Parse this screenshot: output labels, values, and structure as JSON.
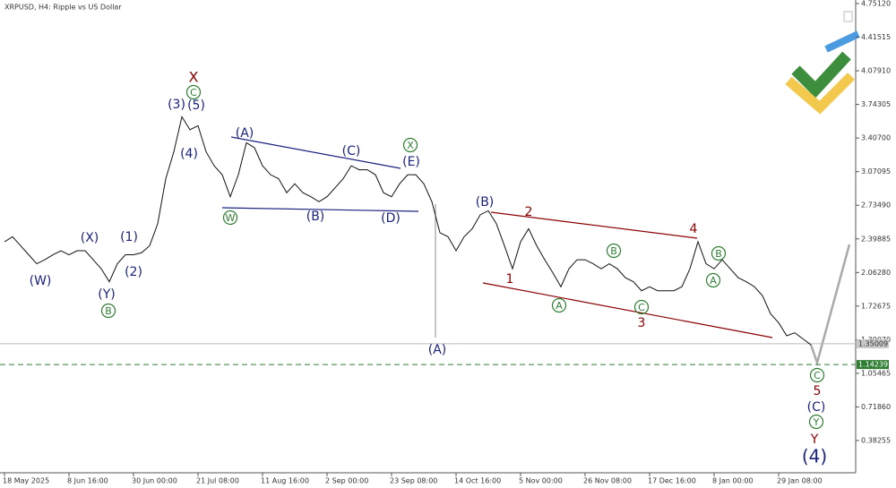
{
  "chart_data": {
    "type": "line",
    "title": "XRPUSD, H4: Ripple vs US Dollar",
    "categories": [
      "18 May 2025",
      null,
      null,
      null,
      null,
      null,
      null,
      null,
      "8 Jun 16:00",
      null,
      null,
      null,
      null,
      null,
      null,
      null,
      "30 Jun 00:00",
      null,
      null,
      null,
      null,
      null,
      null,
      null,
      "21 Jul 08:00",
      null,
      null,
      null,
      null,
      null,
      null,
      null,
      "11 Aug 16:00",
      null,
      null,
      null,
      null,
      null,
      null,
      null,
      "2 Sep 00:00",
      null,
      null,
      null,
      null,
      null,
      null,
      null,
      "23 Sep 08:00",
      null,
      null,
      null,
      null,
      null,
      null,
      null,
      "14 Oct 16:00",
      null,
      null,
      null,
      null,
      null,
      null,
      null,
      "5 Nov 00:00",
      null,
      null,
      null,
      null,
      null,
      null,
      null,
      "26 Nov 08:00",
      null,
      null,
      null,
      null,
      null,
      null,
      null,
      "17 Dec 16:00",
      null,
      null,
      null,
      null,
      null,
      null,
      null,
      "8 Jan 00:00",
      null,
      null,
      null,
      null,
      null,
      null,
      null,
      "29 Jan 08:00",
      null,
      null,
      null,
      null
    ],
    "series": [
      {
        "name": "XRPUSD",
        "color": "#111111",
        "values": [
          2.37,
          2.42,
          2.33,
          2.24,
          2.15,
          2.19,
          2.24,
          2.28,
          2.24,
          2.28,
          2.28,
          2.19,
          2.1,
          1.97,
          2.15,
          2.24,
          2.24,
          2.26,
          2.33,
          2.55,
          3.0,
          3.27,
          3.62,
          3.49,
          3.53,
          3.27,
          3.13,
          3.04,
          2.82,
          3.04,
          3.36,
          3.31,
          3.13,
          3.04,
          3.0,
          2.86,
          2.95,
          2.86,
          2.82,
          2.77,
          2.82,
          2.91,
          3.0,
          3.13,
          3.09,
          3.09,
          3.04,
          2.86,
          2.82,
          2.95,
          3.04,
          3.04,
          2.95,
          2.77,
          2.46,
          2.42,
          2.28,
          2.42,
          2.5,
          2.64,
          2.68,
          2.55,
          2.33,
          2.1,
          2.37,
          2.5,
          2.33,
          2.19,
          2.06,
          1.92,
          2.1,
          2.19,
          2.19,
          2.15,
          2.1,
          2.15,
          2.1,
          2.01,
          1.97,
          1.88,
          1.92,
          1.88,
          1.88,
          1.88,
          1.92,
          2.1,
          2.37,
          2.15,
          2.1,
          2.19,
          2.1,
          2.01,
          1.97,
          1.92,
          1.83,
          1.65,
          1.56,
          1.43,
          1.46,
          1.4,
          1.34
        ]
      }
    ],
    "ylim": [
      0.24,
      4.79
    ],
    "yticks": [
      {
        "value": 4.7512,
        "label": "4.75120"
      },
      4.41515,
      {
        "value": 4.0791,
        "label": "4.07910"
      },
      {
        "value": 3.74305,
        "label": "3.74305"
      },
      {
        "value": 3.407,
        "label": "3.40700"
      },
      3.07095,
      {
        "value": 2.7349,
        "label": "2.73490"
      },
      2.39885,
      {
        "value": 2.0628,
        "label": "2.06280"
      },
      1.72675,
      {
        "value": 1.3907,
        "label": "1.39070"
      },
      1.05465,
      {
        "value": 0.7186,
        "label": "0.71860"
      },
      0.38255
    ],
    "price_line": 1.35009,
    "target_line": 1.14239,
    "annotations": [
      {
        "text": "X",
        "color": "#8b0000"
      },
      {
        "text": "C",
        "color": "#2e7d32",
        "circled": true
      },
      {
        "text": "(3)",
        "color": "#1a237e"
      },
      {
        "text": "(5)",
        "color": "#1a237e"
      },
      {
        "text": "(4)",
        "color": "#1a237e"
      },
      {
        "text": "(W)",
        "color": "#1a237e"
      },
      {
        "text": "(X)",
        "color": "#1a237e"
      },
      {
        "text": "(1)",
        "color": "#1a237e"
      },
      {
        "text": "(2)",
        "color": "#1a237e"
      },
      {
        "text": "(Y)",
        "color": "#1a237e"
      },
      {
        "text": "B",
        "color": "#2e7d32",
        "circled": true
      },
      {
        "text": "(A)",
        "color": "#1a237e"
      },
      {
        "text": "W",
        "color": "#2e7d32",
        "circled": true
      },
      {
        "text": "(B)",
        "color": "#1a237e"
      },
      {
        "text": "(C)",
        "color": "#1a237e"
      },
      {
        "text": "(D)",
        "color": "#1a237e"
      },
      {
        "text": "X",
        "color": "#2e7d32",
        "circled": true
      },
      {
        "text": "(E)",
        "color": "#1a237e"
      },
      {
        "text": "(B)",
        "color": "#1a237e"
      },
      {
        "text": "(A)",
        "color": "#1a237e"
      },
      {
        "text": "2",
        "color": "#8b0000"
      },
      {
        "text": "1",
        "color": "#8b0000"
      },
      {
        "text": "A",
        "color": "#2e7d32",
        "circled": true
      },
      {
        "text": "B",
        "color": "#2e7d32",
        "circled": true
      },
      {
        "text": "C",
        "color": "#2e7d32",
        "circled": true
      },
      {
        "text": "3",
        "color": "#8b0000"
      },
      {
        "text": "4",
        "color": "#8b0000"
      },
      {
        "text": "B",
        "color": "#2e7d32",
        "circled": true
      },
      {
        "text": "A",
        "color": "#2e7d32",
        "circled": true
      },
      {
        "text": "C",
        "color": "#2e7d32",
        "circled": true
      },
      {
        "text": "5",
        "color": "#8b0000"
      },
      {
        "text": "(C)",
        "color": "#1a237e"
      },
      {
        "text": "Y",
        "color": "#2e7d32",
        "circled": true
      },
      {
        "text": "Y",
        "color": "#8b0000"
      },
      {
        "text": "(4)",
        "color": "#1a237e"
      }
    ]
  }
}
